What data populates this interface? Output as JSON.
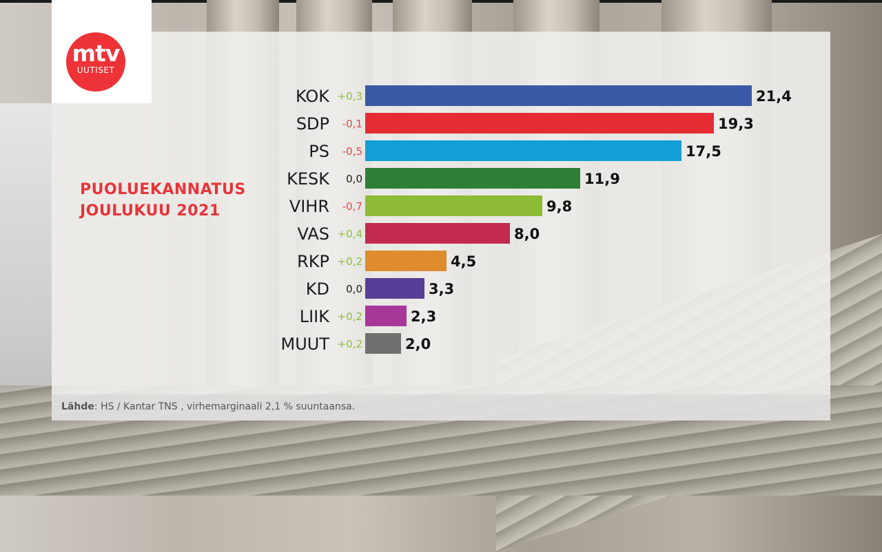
{
  "logo": {
    "line1": "mtv",
    "line2": "UUTISET",
    "color": "#ee3338"
  },
  "title": {
    "line1": "PUOLUEKANNATUS",
    "line2": "JOULUKUU 2021",
    "color": "#e8343a"
  },
  "source": {
    "label": "Lähde",
    "text": ": HS / Kantar TNS , virhemarginaali 2,1 % suuntaansa."
  },
  "change_colors": {
    "positive": "#8dbb3a",
    "negative": "#e0474c",
    "zero": "#1b1b1b"
  },
  "parties": [
    {
      "name": "KOK",
      "change": "+0,3",
      "value": "21,4",
      "num": 21.4,
      "color": "#3a59a5",
      "sign": "positive"
    },
    {
      "name": "SDP",
      "change": "-0,1",
      "value": "19,3",
      "num": 19.3,
      "color": "#e52c33",
      "sign": "negative"
    },
    {
      "name": "PS",
      "change": "-0,5",
      "value": "17,5",
      "num": 17.5,
      "color": "#129ed7",
      "sign": "negative"
    },
    {
      "name": "KESK",
      "change": "0,0",
      "value": "11,9",
      "num": 11.9,
      "color": "#2e7e36",
      "sign": "zero"
    },
    {
      "name": "VIHR",
      "change": "-0,7",
      "value": "9,8",
      "num": 9.8,
      "color": "#8dbb35",
      "sign": "negative"
    },
    {
      "name": "VAS",
      "change": "+0,4",
      "value": "8,0",
      "num": 8.0,
      "color": "#c22b4f",
      "sign": "positive"
    },
    {
      "name": "RKP",
      "change": "+0,2",
      "value": "4,5",
      "num": 4.5,
      "color": "#de8c2e",
      "sign": "positive"
    },
    {
      "name": "KD",
      "change": "0,0",
      "value": "3,3",
      "num": 3.3,
      "color": "#573f98",
      "sign": "zero"
    },
    {
      "name": "LIIK",
      "change": "+0,2",
      "value": "2,3",
      "num": 2.3,
      "color": "#a8379a",
      "sign": "positive"
    },
    {
      "name": "MUUT",
      "change": "+0,2",
      "value": "2,0",
      "num": 2.0,
      "color": "#707070",
      "sign": "positive"
    }
  ],
  "chart_data": {
    "type": "bar",
    "orientation": "horizontal",
    "title": "PUOLUEKANNATUS JOULUKUU 2021",
    "categories": [
      "KOK",
      "SDP",
      "PS",
      "KESK",
      "VIHR",
      "VAS",
      "RKP",
      "KD",
      "LIIK",
      "MUUT"
    ],
    "values": [
      21.4,
      19.3,
      17.5,
      11.9,
      9.8,
      8.0,
      4.5,
      3.3,
      2.3,
      2.0
    ],
    "changes": [
      0.3,
      -0.1,
      -0.5,
      0.0,
      -0.7,
      0.4,
      0.2,
      0.0,
      0.2,
      0.2
    ],
    "colors": [
      "#3a59a5",
      "#e52c33",
      "#129ed7",
      "#2e7e36",
      "#8dbb35",
      "#c22b4f",
      "#de8c2e",
      "#573f98",
      "#a8379a",
      "#707070"
    ],
    "xlabel": "",
    "ylabel": "",
    "grid": false,
    "note": "Lähde: HS / Kantar TNS , virhemarginaali 2,1 % suuntaansa."
  }
}
